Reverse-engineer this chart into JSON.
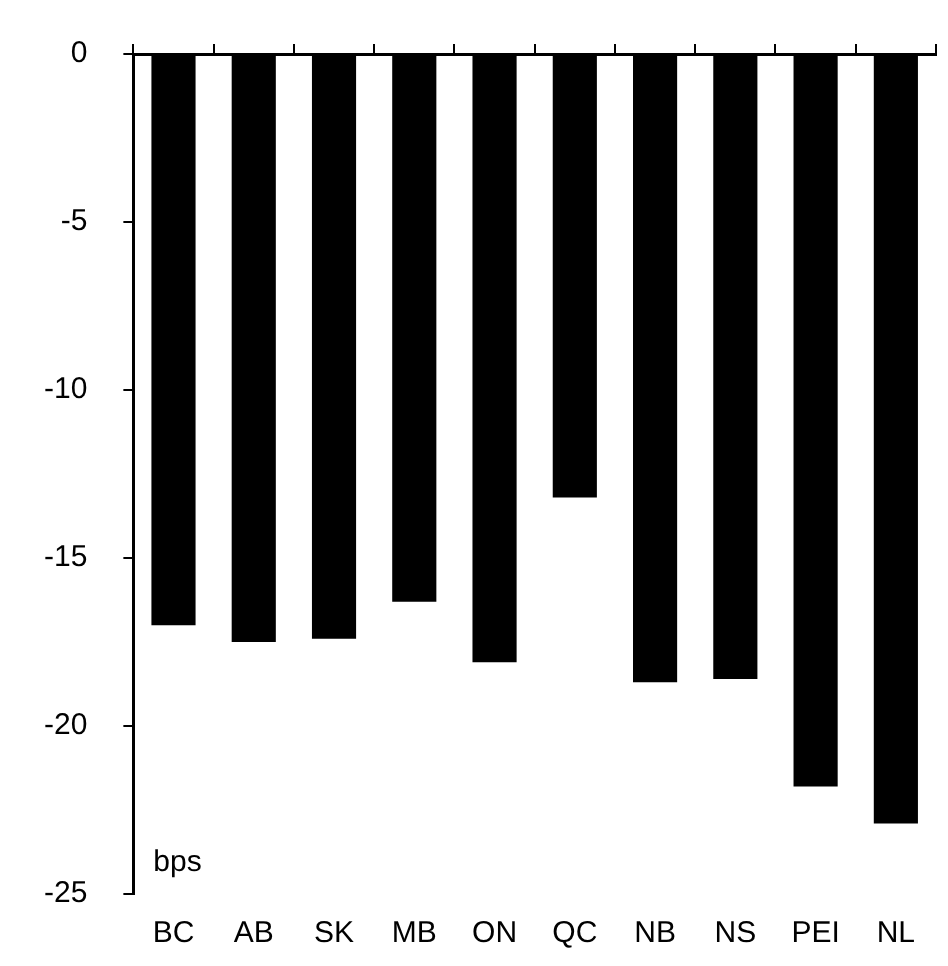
{
  "chart_data": {
    "type": "bar",
    "categories": [
      "BC",
      "AB",
      "SK",
      "MB",
      "ON",
      "QC",
      "NB",
      "NS",
      "PEI",
      "NL"
    ],
    "values": [
      -17.0,
      -17.5,
      -17.4,
      -16.3,
      -18.1,
      -13.2,
      -18.7,
      -18.6,
      -21.8,
      -22.9
    ],
    "color": "#000000",
    "ylim": [
      -25,
      0
    ],
    "yticks": [
      -25,
      -20,
      -15,
      -10,
      -5,
      0
    ],
    "annotations": [
      "bps"
    ],
    "grid": false,
    "legend": false
  }
}
